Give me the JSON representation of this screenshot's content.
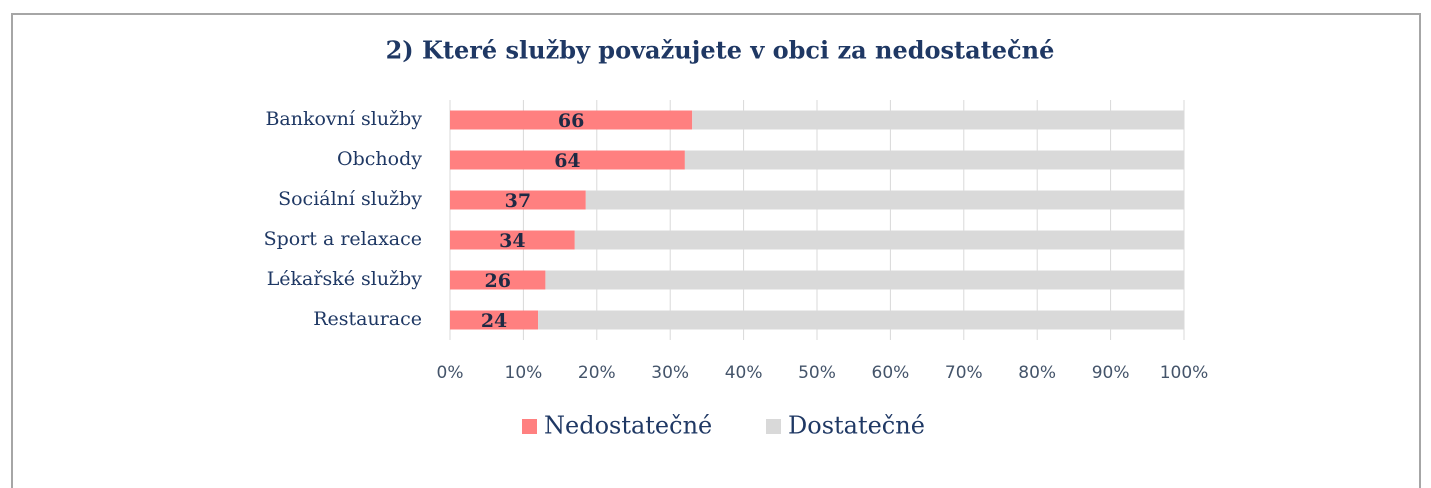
{
  "chart_data": {
    "type": "stacked_bar_percent",
    "title": "2) Které služby považujete v obci za nedostatečné",
    "categories": [
      "Bankovní služby",
      "Obchody",
      "Sociální služby",
      "Sport a relaxace",
      "Lékařské služby",
      "Restaurace"
    ],
    "series": [
      {
        "name": "Nedostatečné",
        "color": "#ff8080",
        "values": [
          66,
          64,
          37,
          34,
          26,
          24
        ],
        "value_labels_shown": true
      },
      {
        "name": "Dostatečné",
        "color": "#d9d9d9",
        "values": [
          134,
          136,
          163,
          166,
          174,
          176
        ]
      }
    ],
    "xlim": [
      0,
      100
    ],
    "xticks": [
      {
        "value": 0,
        "label": "0%"
      },
      {
        "value": 10,
        "label": "10%"
      },
      {
        "value": 20,
        "label": "20%"
      },
      {
        "value": 30,
        "label": "30%"
      },
      {
        "value": 40,
        "label": "40%"
      },
      {
        "value": 50,
        "label": "50%"
      },
      {
        "value": 60,
        "label": "60%"
      },
      {
        "value": 70,
        "label": "70%"
      },
      {
        "value": 80,
        "label": "80%"
      },
      {
        "value": 90,
        "label": "90%"
      },
      {
        "value": 100,
        "label": "100%"
      }
    ],
    "grid": true,
    "legend": "bottom"
  }
}
